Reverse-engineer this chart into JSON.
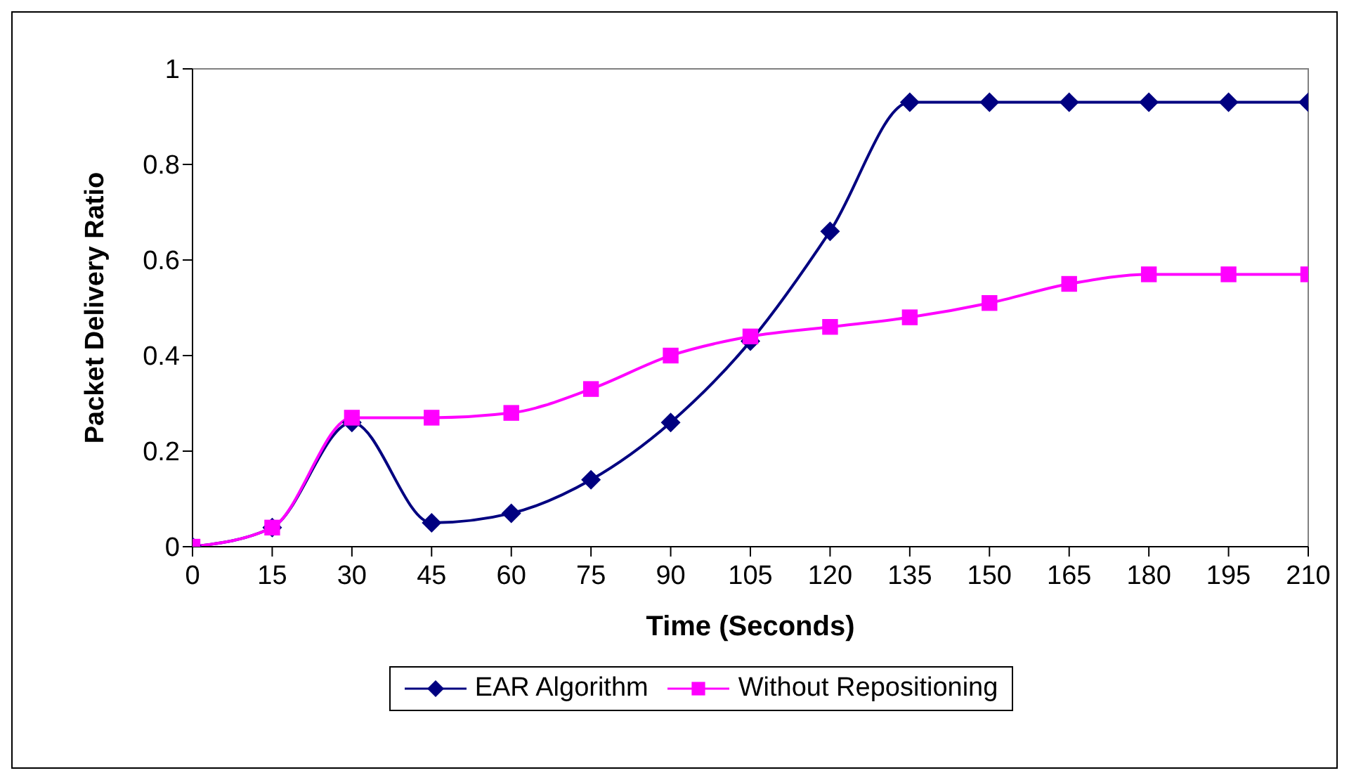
{
  "chart_data": {
    "type": "line",
    "xlabel": "Time (Seconds)",
    "ylabel": "Packet Delivery Ratio",
    "x": [
      0,
      15,
      30,
      45,
      60,
      75,
      90,
      105,
      120,
      135,
      150,
      165,
      180,
      195,
      210
    ],
    "xlim": [
      0,
      210
    ],
    "xticks": [
      0,
      15,
      30,
      45,
      60,
      75,
      90,
      105,
      120,
      135,
      150,
      165,
      180,
      195,
      210
    ],
    "ylim": [
      0,
      1
    ],
    "yticks": [
      0,
      0.2,
      0.4,
      0.6,
      0.8,
      1
    ],
    "grid": false,
    "legend": "bottom",
    "line_style": "solid",
    "series": [
      {
        "name": "EAR Algorithm",
        "color": "#000080",
        "marker": "diamond",
        "values": [
          0,
          0.04,
          0.26,
          0.05,
          0.07,
          0.14,
          0.26,
          0.43,
          0.66,
          0.93,
          0.93,
          0.93,
          0.93,
          0.93,
          0.93
        ]
      },
      {
        "name": "Without Repositioning",
        "color": "#ff00ff",
        "marker": "square",
        "values": [
          0,
          0.04,
          0.27,
          0.27,
          0.28,
          0.33,
          0.4,
          0.44,
          0.46,
          0.48,
          0.51,
          0.55,
          0.57,
          0.57,
          0.57
        ]
      }
    ]
  }
}
